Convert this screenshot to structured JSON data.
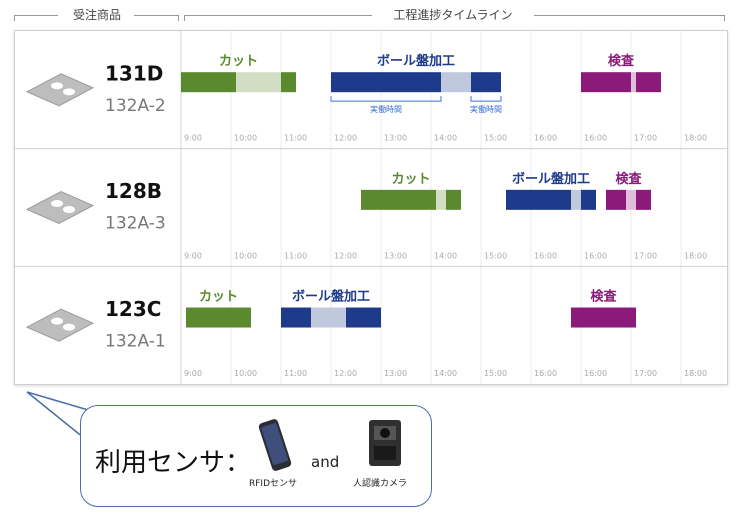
{
  "headers": {
    "left": "受注商品",
    "right": "工程進捗タイムライン"
  },
  "chart_data": {
    "type": "gantt",
    "time_ticks": [
      "9:00",
      "10:00",
      "11:00",
      "12:00",
      "13:00",
      "14:00",
      "15:00",
      "16:00",
      "16:00",
      "17:00",
      "18:00"
    ],
    "rows": [
      {
        "id": "131D",
        "sub": "132A-2",
        "tasks": [
          {
            "name": "カット",
            "color": "#5b8a2e",
            "segments": [
              {
                "start": 9.0,
                "end": 10.1,
                "light": false
              },
              {
                "start": 10.1,
                "end": 11.0,
                "light": true
              },
              {
                "start": 11.0,
                "end": 11.3,
                "light": false
              }
            ]
          },
          {
            "name": "ボール盤加工",
            "color": "#1e3a8a",
            "segments": [
              {
                "start": 12.0,
                "end": 14.2,
                "light": false
              },
              {
                "start": 14.2,
                "end": 14.8,
                "light": true
              },
              {
                "start": 14.8,
                "end": 15.4,
                "light": false
              }
            ]
          },
          {
            "name": "検査",
            "color": "#8b1a7a",
            "segments": [
              {
                "start": 17.0,
                "end": 18.0,
                "light": false
              },
              {
                "start": 18.0,
                "end": 18.1,
                "light": true
              },
              {
                "start": 18.1,
                "end": 18.6,
                "light": false
              }
            ]
          }
        ],
        "annotations": [
          {
            "label": "実働時間",
            "start": 12.0,
            "end": 14.2
          },
          {
            "label": "実働時間",
            "start": 14.8,
            "end": 15.4
          }
        ]
      },
      {
        "id": "128B",
        "sub": "132A-3",
        "tasks": [
          {
            "name": "カット",
            "color": "#5b8a2e",
            "segments": [
              {
                "start": 12.6,
                "end": 14.1,
                "light": false
              },
              {
                "start": 14.1,
                "end": 14.3,
                "light": true
              },
              {
                "start": 14.3,
                "end": 14.6,
                "light": false
              }
            ]
          },
          {
            "name": "ボール盤加工",
            "color": "#1e3a8a",
            "segments": [
              {
                "start": 15.5,
                "end": 16.8,
                "light": false
              },
              {
                "start": 16.8,
                "end": 17.0,
                "light": true
              },
              {
                "start": 17.0,
                "end": 17.3,
                "light": false
              }
            ]
          },
          {
            "name": "検査",
            "color": "#8b1a7a",
            "segments": [
              {
                "start": 17.5,
                "end": 17.9,
                "light": false
              },
              {
                "start": 17.9,
                "end": 18.1,
                "light": true
              },
              {
                "start": 18.1,
                "end": 18.4,
                "light": false
              }
            ]
          }
        ],
        "annotations": []
      },
      {
        "id": "123C",
        "sub": "132A-1",
        "tasks": [
          {
            "name": "カット",
            "color": "#5b8a2e",
            "segments": [
              {
                "start": 9.1,
                "end": 10.4,
                "light": false
              }
            ]
          },
          {
            "name": "ボール盤加工",
            "color": "#1e3a8a",
            "segments": [
              {
                "start": 11.0,
                "end": 11.6,
                "light": false
              },
              {
                "start": 11.6,
                "end": 12.3,
                "light": true
              },
              {
                "start": 12.3,
                "end": 13.0,
                "light": false
              }
            ]
          },
          {
            "name": "検査",
            "color": "#8b1a7a",
            "segments": [
              {
                "start": 16.8,
                "end": 18.1,
                "light": false
              }
            ]
          }
        ],
        "annotations": []
      }
    ]
  },
  "sensors": {
    "label": "利用センサ：",
    "and": "and",
    "rfid": "RFIDセンサ",
    "camera": "人認識カメラ"
  }
}
